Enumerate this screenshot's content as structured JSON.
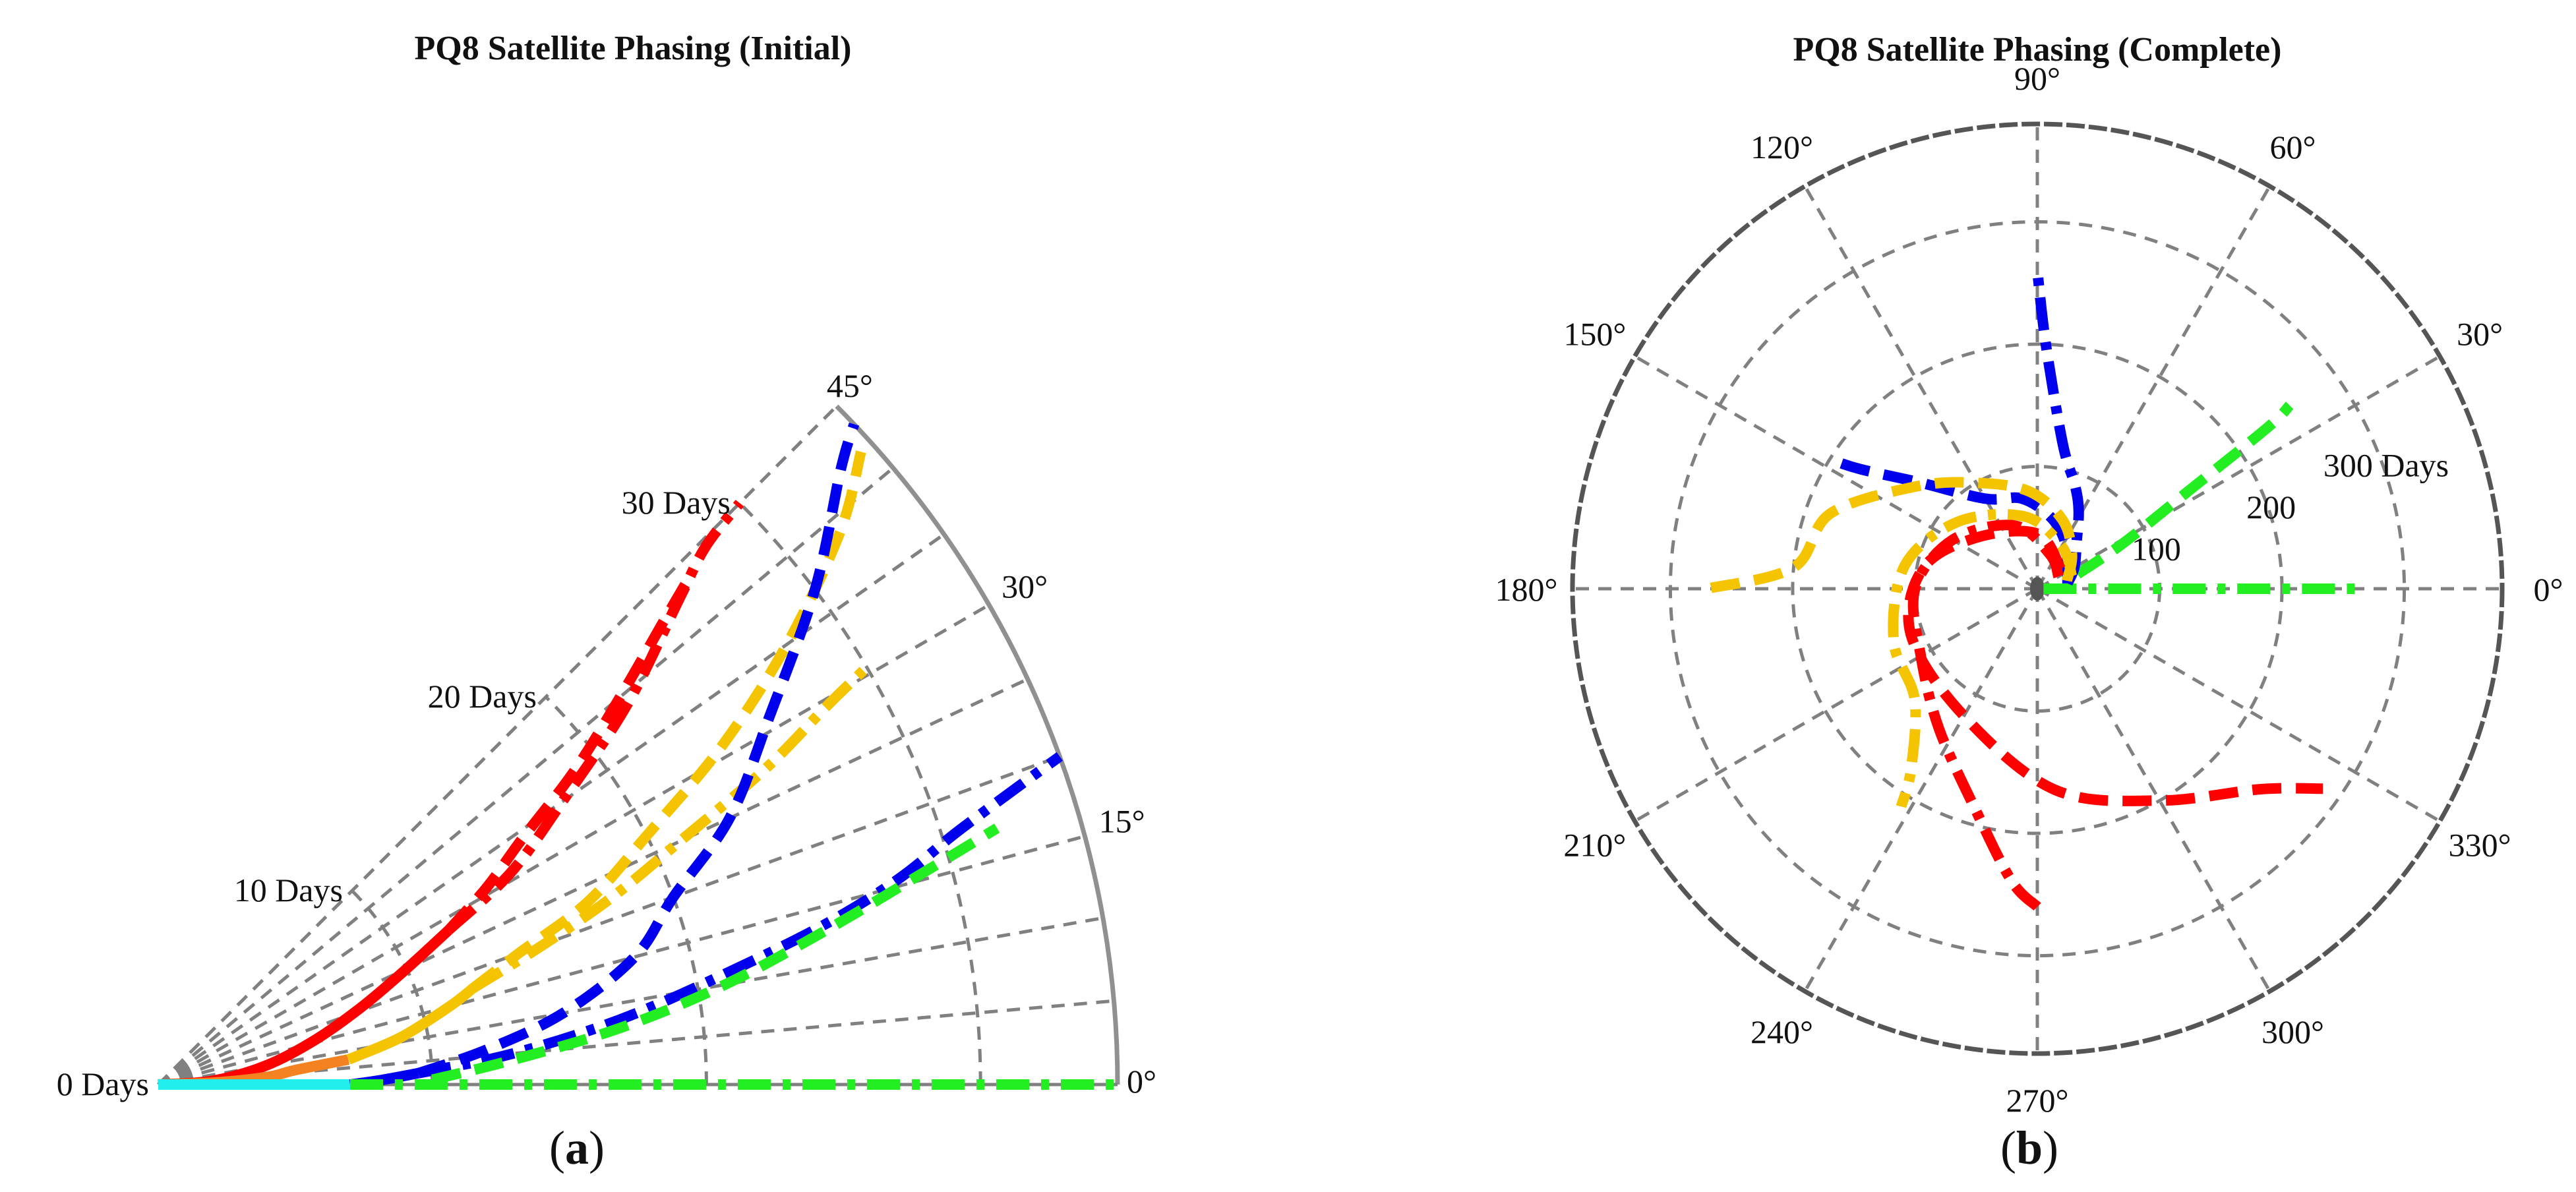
{
  "colors": {
    "grid": "#808080",
    "outline": "#909090",
    "red": "#ff0000",
    "yellow": "#f5c400",
    "blue": "#0000ee",
    "green": "#22ee22",
    "cyan": "#22eeee",
    "orange": "#f58220"
  },
  "chart_data": [
    {
      "type": "polar-line",
      "panel_label": "a",
      "title": "PQ8 Satellite Phasing (Initial)",
      "theta_unit": "deg",
      "theta_range": [
        0,
        45
      ],
      "r_range": [
        0,
        35
      ],
      "theta_ticks": [
        {
          "value": 0,
          "label": "0°"
        },
        {
          "value": 15,
          "label": "15°"
        },
        {
          "value": 30,
          "label": "30°"
        },
        {
          "value": 45,
          "label": "45°"
        }
      ],
      "r_ticks": [
        {
          "value": 0,
          "label": "0 Days"
        },
        {
          "value": 10,
          "label": "10 Days"
        },
        {
          "value": 20,
          "label": "20 Days"
        },
        {
          "value": 30,
          "label": "30 Days"
        }
      ],
      "grid": true,
      "series": [
        {
          "color": "red",
          "dash": "solid",
          "points": [
            [
              0,
              0
            ],
            [
              4,
              2
            ],
            [
              10,
              4
            ],
            [
              16,
              6
            ],
            [
              21,
              8
            ],
            [
              25,
              10
            ],
            [
              28,
              12
            ]
          ]
        },
        {
          "color": "red",
          "dash": "dashdot",
          "points": [
            [
              28,
              12
            ],
            [
              31,
              15
            ],
            [
              35,
              18
            ],
            [
              39,
              22
            ],
            [
              43,
              26
            ],
            [
              44.5,
              28
            ],
            [
              45,
              30
            ]
          ]
        },
        {
          "color": "red",
          "dash": "dashed",
          "points": [
            [
              28,
              12
            ],
            [
              31,
              14
            ],
            [
              34,
              16
            ],
            [
              37,
              19
            ],
            [
              40,
              22
            ],
            [
              42.5,
              25
            ],
            [
              43.5,
              26.5
            ]
          ]
        },
        {
          "color": "orange",
          "dash": "solid",
          "points": [
            [
              0,
              0
            ],
            [
              2,
              2
            ],
            [
              4,
              4
            ],
            [
              6,
              5
            ],
            [
              7.5,
              7
            ]
          ]
        },
        {
          "color": "yellow",
          "dash": "solid",
          "points": [
            [
              7.5,
              7
            ],
            [
              11,
              9
            ],
            [
              15,
              11
            ],
            [
              17,
              12
            ]
          ]
        },
        {
          "color": "yellow",
          "dash": "dashdot",
          "points": [
            [
              17,
              12
            ],
            [
              20,
              15
            ],
            [
              22.5,
              18
            ],
            [
              25,
              21
            ],
            [
              27.5,
              25
            ],
            [
              29.5,
              28
            ],
            [
              30.5,
              30
            ]
          ]
        },
        {
          "color": "yellow",
          "dash": "dashed",
          "points": [
            [
              17,
              12
            ],
            [
              20,
              14
            ],
            [
              23,
              17
            ],
            [
              27,
              20
            ],
            [
              31,
              24
            ],
            [
              35,
              28
            ],
            [
              39,
              32
            ],
            [
              42,
              34.5
            ]
          ]
        },
        {
          "color": "cyan",
          "dash": "solid",
          "points": [
            [
              0,
              0
            ],
            [
              0,
              3.5
            ],
            [
              0,
              7
            ]
          ]
        },
        {
          "color": "blue",
          "dash": "solid",
          "points": [
            [
              0,
              7
            ],
            [
              1,
              8
            ],
            [
              2.5,
              9.5
            ]
          ]
        },
        {
          "color": "blue",
          "dash": "dashdot",
          "points": [
            [
              2.5,
              9.5
            ],
            [
              5,
              13
            ],
            [
              8,
              17
            ],
            [
              11,
              21
            ],
            [
              13.5,
              25
            ],
            [
              15.5,
              28
            ],
            [
              17.5,
              30.5
            ],
            [
              19,
              33
            ],
            [
              20,
              35
            ]
          ]
        },
        {
          "color": "blue",
          "dash": "dashed",
          "points": [
            [
              2.5,
              9.5
            ],
            [
              6,
              12
            ],
            [
              10,
              15
            ],
            [
              15,
              18
            ],
            [
              20,
              20
            ],
            [
              25,
              23
            ],
            [
              31,
              26
            ],
            [
              37,
              30
            ],
            [
              42,
              33.5
            ],
            [
              43.5,
              35
            ]
          ]
        },
        {
          "color": "green",
          "dash": "dashdot",
          "points": [
            [
              0,
              7
            ],
            [
              0,
              15
            ],
            [
              0,
              25
            ],
            [
              0,
              35
            ]
          ]
        },
        {
          "color": "green",
          "dash": "dashed",
          "points": [
            [
              1,
              10
            ],
            [
              4,
              13
            ],
            [
              7,
              17
            ],
            [
              10,
              21
            ],
            [
              13,
              25
            ],
            [
              15.5,
              29
            ],
            [
              17,
              32
            ]
          ]
        }
      ]
    },
    {
      "type": "polar-line",
      "panel_label": "b",
      "title": "PQ8 Satellite Phasing (Complete)",
      "theta_unit": "deg",
      "theta_range": [
        0,
        360
      ],
      "r_range": [
        0,
        380
      ],
      "theta_ticks": [
        {
          "value": 0,
          "label": "0°"
        },
        {
          "value": 30,
          "label": "30°"
        },
        {
          "value": 60,
          "label": "60°"
        },
        {
          "value": 90,
          "label": "90°"
        },
        {
          "value": 120,
          "label": "120°"
        },
        {
          "value": 150,
          "label": "150°"
        },
        {
          "value": 180,
          "label": "180°"
        },
        {
          "value": 210,
          "label": "210°"
        },
        {
          "value": 240,
          "label": "240°"
        },
        {
          "value": 270,
          "label": "270°"
        },
        {
          "value": 300,
          "label": "300°"
        },
        {
          "value": 330,
          "label": "330°"
        }
      ],
      "r_ticks": [
        {
          "value": 100,
          "label": "100"
        },
        {
          "value": 200,
          "label": "200"
        },
        {
          "value": 300,
          "label": "300 Days"
        }
      ],
      "grid": true,
      "series": [
        {
          "color": "green",
          "dash": "dashdot",
          "points": [
            [
              0,
              5
            ],
            [
              0,
              80
            ],
            [
              0,
              160
            ],
            [
              0,
              260
            ]
          ]
        },
        {
          "color": "green",
          "dash": "dashed",
          "points": [
            [
              20,
              35
            ],
            [
              28,
              80
            ],
            [
              33,
              150
            ],
            [
              35,
              230
            ],
            [
              36,
              255
            ]
          ]
        },
        {
          "color": "blue",
          "dash": "dashdot",
          "points": [
            [
              10,
              25
            ],
            [
              30,
              35
            ],
            [
              50,
              50
            ],
            [
              62,
              72
            ],
            [
              70,
              90
            ],
            [
              80,
              120
            ],
            [
              88,
              200
            ],
            [
              90,
              260
            ]
          ]
        },
        {
          "color": "blue",
          "dash": "dashed",
          "points": [
            [
              10,
              25
            ],
            [
              35,
              30
            ],
            [
              60,
              45
            ],
            [
              80,
              60
            ],
            [
              100,
              75
            ],
            [
              120,
              85
            ],
            [
              138,
              130
            ],
            [
              146,
              175
            ],
            [
              148,
              200
            ]
          ]
        },
        {
          "color": "yellow",
          "dash": "dashed",
          "points": [
            [
              15,
              25
            ],
            [
              45,
              40
            ],
            [
              70,
              60
            ],
            [
              95,
              80
            ],
            [
              120,
              100
            ],
            [
              140,
              130
            ],
            [
              160,
              180
            ],
            [
              175,
              200
            ],
            [
              180,
              270
            ]
          ]
        },
        {
          "color": "yellow",
          "dash": "dashdot",
          "points": [
            [
              20,
              30
            ],
            [
              60,
              40
            ],
            [
              100,
              60
            ],
            [
              140,
              85
            ],
            [
              170,
              110
            ],
            [
              200,
              125
            ],
            [
              222,
              135
            ],
            [
              235,
              180
            ],
            [
              238,
              210
            ]
          ]
        },
        {
          "color": "red",
          "dash": "dashdot",
          "points": [
            [
              30,
              20
            ],
            [
              70,
              30
            ],
            [
              110,
              55
            ],
            [
              150,
              80
            ],
            [
              180,
              100
            ],
            [
              210,
              110
            ],
            [
              235,
              140
            ],
            [
              255,
              190
            ],
            [
              265,
              240
            ],
            [
              270,
              260
            ]
          ]
        },
        {
          "color": "red",
          "dash": "dashed",
          "points": [
            [
              40,
              25
            ],
            [
              90,
              45
            ],
            [
              140,
              65
            ],
            [
              170,
              95
            ],
            [
              200,
              110
            ],
            [
              240,
              120
            ],
            [
              275,
              165
            ],
            [
              300,
              200
            ],
            [
              318,
              245
            ],
            [
              325,
              285
            ]
          ]
        }
      ]
    }
  ]
}
